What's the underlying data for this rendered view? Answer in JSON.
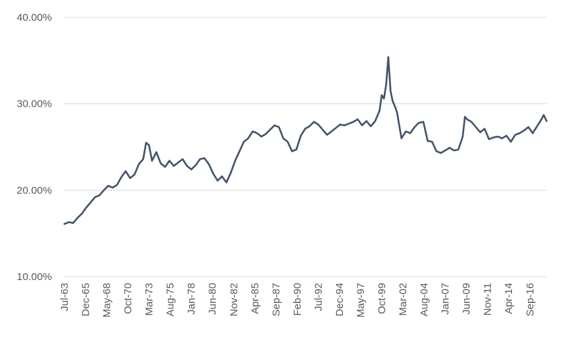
{
  "chart_data": {
    "type": "line",
    "title": "",
    "xlabel": "",
    "ylabel": "",
    "x_tick_labels": [
      "Jul-63",
      "Dec-65",
      "May-68",
      "Oct-70",
      "Mar-73",
      "Aug-75",
      "Jan-78",
      "Jun-80",
      "Nov-82",
      "Apr-85",
      "Sep-87",
      "Feb-90",
      "Jul-92",
      "Dec-94",
      "May-97",
      "Oct-99",
      "Mar-02",
      "Aug-04",
      "Jan-07",
      "Jun-09",
      "Nov-11",
      "Apr-14",
      "Sep-16"
    ],
    "y_tick_labels": [
      "10.00%",
      "20.00%",
      "30.00%",
      "40.00%"
    ],
    "ylim": [
      10,
      40
    ],
    "xlim": [
      "1963-07",
      "2018-08"
    ],
    "grid": true,
    "legend": "none",
    "line_color": "#44546a",
    "series": [
      {
        "x": [
          "1963-07",
          "1964-01",
          "1964-07",
          "1965-01",
          "1965-07",
          "1966-01",
          "1966-07",
          "1967-01",
          "1967-07",
          "1968-01",
          "1968-07",
          "1969-01",
          "1969-07",
          "1970-01",
          "1970-07",
          "1971-01",
          "1971-07",
          "1972-01",
          "1972-07",
          "1972-11",
          "1973-03",
          "1973-07",
          "1974-01",
          "1974-07",
          "1975-01",
          "1975-07",
          "1976-01",
          "1976-07",
          "1977-01",
          "1977-07",
          "1978-01",
          "1978-07",
          "1979-01",
          "1979-07",
          "1980-01",
          "1980-07",
          "1981-01",
          "1981-07",
          "1982-01",
          "1982-07",
          "1983-01",
          "1983-07",
          "1984-01",
          "1984-07",
          "1985-01",
          "1985-07",
          "1986-01",
          "1986-07",
          "1987-01",
          "1987-07",
          "1988-01",
          "1988-07",
          "1989-01",
          "1989-07",
          "1990-01",
          "1990-07",
          "1991-01",
          "1991-07",
          "1992-01",
          "1992-07",
          "1993-01",
          "1993-07",
          "1994-01",
          "1994-07",
          "1995-01",
          "1995-07",
          "1996-01",
          "1996-07",
          "1997-01",
          "1997-07",
          "1998-01",
          "1998-07",
          "1999-01",
          "1999-07",
          "1999-10",
          "2000-01",
          "2000-04",
          "2000-07",
          "2000-10",
          "2001-01",
          "2001-04",
          "2001-07",
          "2002-01",
          "2002-07",
          "2003-01",
          "2003-07",
          "2004-01",
          "2004-07",
          "2005-01",
          "2005-07",
          "2006-01",
          "2006-07",
          "2007-01",
          "2007-07",
          "2008-01",
          "2008-07",
          "2009-01",
          "2009-04",
          "2009-07",
          "2010-01",
          "2010-07",
          "2011-01",
          "2011-07",
          "2012-01",
          "2012-07",
          "2013-01",
          "2013-07",
          "2014-01",
          "2014-07",
          "2015-01",
          "2015-07",
          "2016-01",
          "2016-07",
          "2017-01",
          "2017-07",
          "2018-01",
          "2018-04",
          "2018-08"
        ],
        "values": [
          16.1,
          16.3,
          16.2,
          16.8,
          17.3,
          18.0,
          18.6,
          19.2,
          19.4,
          20.0,
          20.5,
          20.3,
          20.6,
          21.5,
          22.2,
          21.4,
          21.8,
          23.0,
          23.6,
          25.5,
          25.2,
          23.4,
          24.4,
          23.1,
          22.7,
          23.4,
          22.8,
          23.2,
          23.6,
          22.8,
          22.4,
          22.9,
          23.6,
          23.7,
          23.0,
          21.9,
          21.1,
          21.6,
          20.9,
          22.0,
          23.4,
          24.5,
          25.6,
          26.0,
          26.8,
          26.6,
          26.2,
          26.5,
          27.0,
          27.5,
          27.3,
          26.0,
          25.6,
          24.5,
          24.7,
          26.3,
          27.1,
          27.4,
          27.9,
          27.6,
          27.0,
          26.4,
          26.8,
          27.2,
          27.6,
          27.5,
          27.7,
          27.9,
          28.2,
          27.5,
          28.0,
          27.4,
          28.0,
          29.2,
          31.0,
          30.6,
          32.2,
          35.4,
          31.5,
          30.3,
          29.7,
          29.0,
          26.0,
          26.8,
          26.6,
          27.3,
          27.8,
          27.9,
          25.7,
          25.6,
          24.5,
          24.3,
          24.6,
          24.9,
          24.6,
          24.7,
          26.2,
          28.5,
          28.2,
          27.9,
          27.3,
          26.7,
          27.1,
          25.9,
          26.1,
          26.2,
          26.0,
          26.3,
          25.6,
          26.4,
          26.6,
          26.9,
          27.3,
          26.6,
          27.4,
          28.2,
          28.7,
          28.0
        ]
      }
    ]
  }
}
